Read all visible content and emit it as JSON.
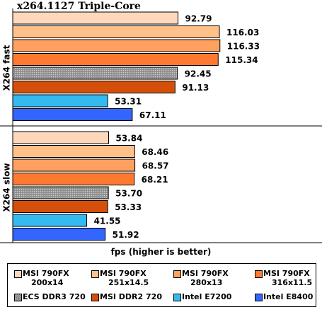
{
  "chart_data": {
    "type": "bar",
    "orientation": "horizontal",
    "title": "x264.1127 Triple-Core",
    "xlabel": "fps (higher is better)",
    "groups": [
      "X264 fast",
      "X264 slow"
    ],
    "series": [
      {
        "name": "MSI 790FX 200x14",
        "name_lines": [
          "MSI 790FX",
          "200x14"
        ],
        "color": "#ffd8bc",
        "values": [
          92.79,
          53.84
        ]
      },
      {
        "name": "MSI 790FX 251x14.5",
        "name_lines": [
          "MSI 790FX",
          "251x14.5"
        ],
        "color": "#ffc089",
        "values": [
          116.03,
          68.46
        ]
      },
      {
        "name": "MSI 790FX 280x13",
        "name_lines": [
          "MSI 790FX",
          "280x13"
        ],
        "color": "#ffa060",
        "values": [
          116.33,
          68.57
        ]
      },
      {
        "name": "MSI 790FX 316x11.5",
        "name_lines": [
          "MSI 790FX",
          "316x11.5"
        ],
        "color": "#ff7a30",
        "values": [
          115.34,
          68.21
        ]
      },
      {
        "name": "ECS DDR3 720",
        "name_lines": [
          "ECS DDR3 720"
        ],
        "color": "#999999",
        "pattern": "dotted",
        "values": [
          92.45,
          53.7
        ]
      },
      {
        "name": "MSI DDR2 720",
        "name_lines": [
          "MSI DDR2 720"
        ],
        "color": "#d4500a",
        "values": [
          91.13,
          53.33
        ]
      },
      {
        "name": "Intel E7200",
        "name_lines": [
          "Intel E7200"
        ],
        "color": "#33bbf0",
        "values": [
          53.31,
          41.55
        ]
      },
      {
        "name": "Intel E8400",
        "name_lines": [
          "Intel E8400"
        ],
        "color": "#3366ff",
        "values": [
          67.11,
          51.92
        ]
      }
    ],
    "value_labels": [
      [
        "92.79",
        "116.03",
        "116.33",
        "115.34",
        "92.45",
        "91.13",
        "53.31",
        "67.11"
      ],
      [
        "53.84",
        "68.46",
        "68.57",
        "68.21",
        "53.70",
        "53.33",
        "41.55",
        "51.92"
      ]
    ],
    "xlim": [
      0,
      120
    ],
    "grid": false,
    "legend_position": "bottom"
  }
}
